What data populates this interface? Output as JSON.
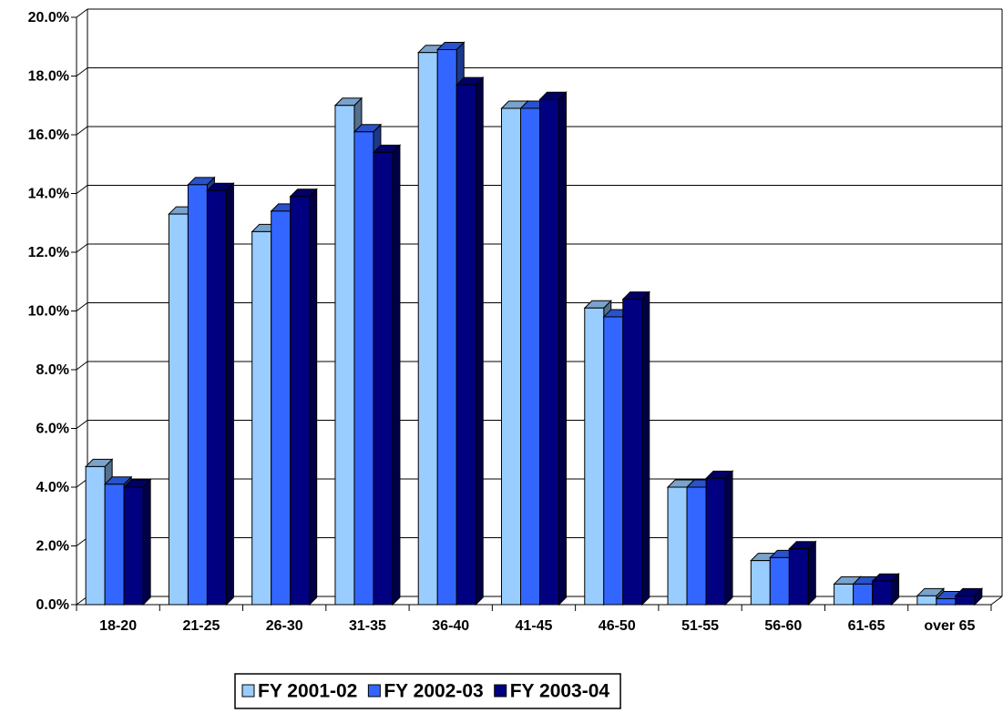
{
  "chart_data": {
    "type": "bar3d",
    "categories": [
      "18-20",
      "21-25",
      "26-30",
      "31-35",
      "36-40",
      "41-45",
      "46-50",
      "51-55",
      "56-60",
      "61-65",
      "over 65"
    ],
    "series": [
      {
        "name": "FY 2001-02",
        "color": "#99ccff",
        "values": [
          4.7,
          13.3,
          12.7,
          17.0,
          18.8,
          16.9,
          10.1,
          4.0,
          1.5,
          0.7,
          0.3
        ]
      },
      {
        "name": "FY 2002-03",
        "color": "#3366ff",
        "values": [
          4.1,
          14.3,
          13.4,
          16.1,
          18.9,
          16.9,
          9.8,
          4.0,
          1.6,
          0.7,
          0.2
        ]
      },
      {
        "name": "FY 2003-04",
        "color": "#000080",
        "values": [
          4.0,
          14.1,
          13.9,
          15.4,
          17.7,
          17.2,
          10.4,
          4.3,
          1.9,
          0.8,
          0.3
        ]
      }
    ],
    "ylim": [
      0,
      20
    ],
    "yticks": [
      {
        "value": 0,
        "label": "0.0%"
      },
      {
        "value": 2,
        "label": "2.0%"
      },
      {
        "value": 4,
        "label": "4.0%"
      },
      {
        "value": 6,
        "label": "6.0%"
      },
      {
        "value": 8,
        "label": "8.0%"
      },
      {
        "value": 10,
        "label": "10.0%"
      },
      {
        "value": 12,
        "label": "12.0%"
      },
      {
        "value": 14,
        "label": "14.0%"
      },
      {
        "value": 16,
        "label": "16.0%"
      },
      {
        "value": 18,
        "label": "18.0%"
      },
      {
        "value": 20,
        "label": "20.0%"
      }
    ],
    "grid": true,
    "legend": "bottom"
  }
}
